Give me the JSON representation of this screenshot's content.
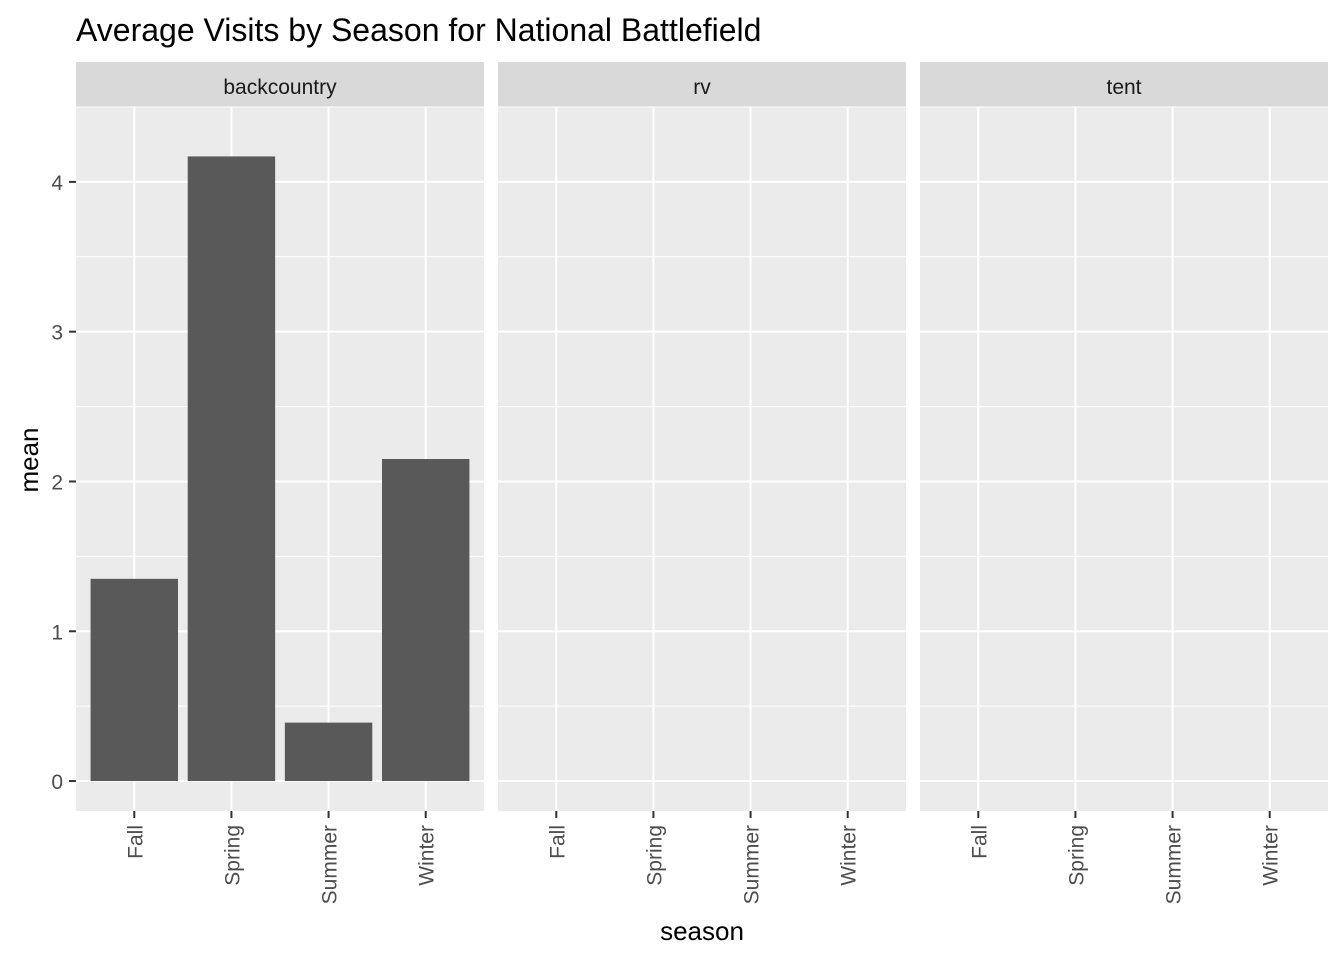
{
  "chart_data": {
    "type": "bar",
    "title": "Average Visits by Season for National Battlefield",
    "xlabel": "season",
    "ylabel": "mean",
    "categories": [
      "Fall",
      "Spring",
      "Summer",
      "Winter"
    ],
    "ylim": [
      -0.2,
      4.5
    ],
    "yticks": [
      0,
      1,
      2,
      3,
      4
    ],
    "grid": true,
    "legend": "none",
    "facets": [
      {
        "name": "backcountry",
        "values": [
          1.35,
          4.17,
          0.39,
          2.15
        ]
      },
      {
        "name": "rv",
        "values": [
          null,
          null,
          null,
          null
        ]
      },
      {
        "name": "tent",
        "values": [
          null,
          null,
          null,
          null
        ]
      }
    ],
    "colors": {
      "bar": "#595959",
      "panel_bg": "#EBEBEB",
      "strip_bg": "#D9D9D9",
      "grid_major": "#FFFFFF",
      "axis_text": "#4D4D4D",
      "text": "#000000"
    }
  }
}
